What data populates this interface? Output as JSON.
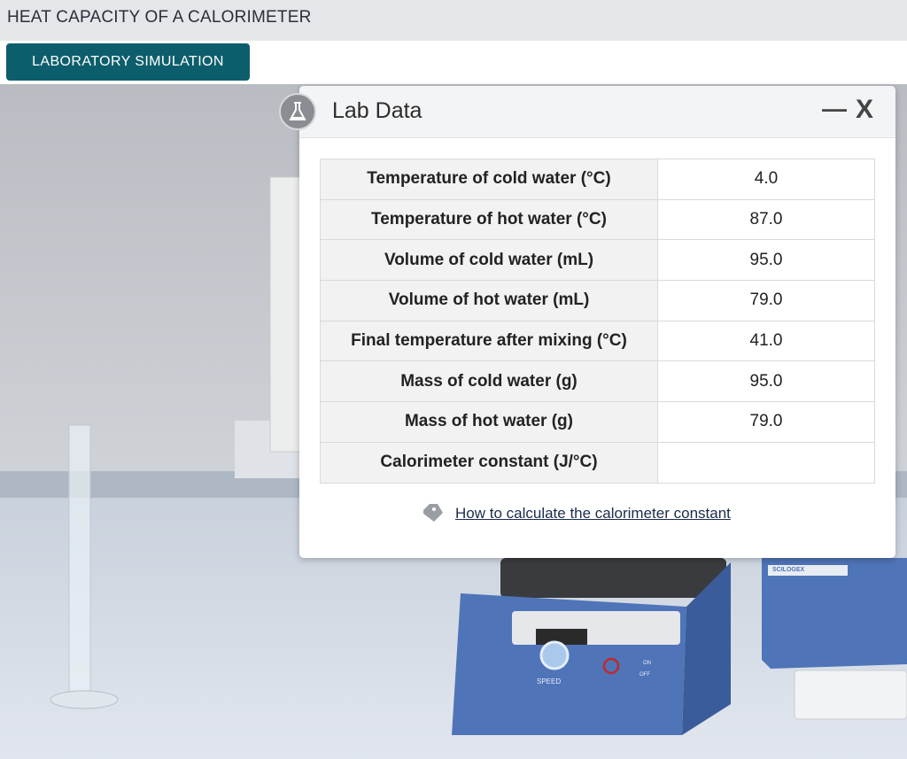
{
  "header": {
    "title": "HEAT CAPACITY OF A CALORIMETER"
  },
  "tab": {
    "label": "LABORATORY SIMULATION"
  },
  "dialog": {
    "title": "Lab Data",
    "minimize": "—",
    "close": "X",
    "table": {
      "rows": [
        [
          "Temperature of cold water (°C)",
          "4.0"
        ],
        [
          "Temperature of hot water (°C)",
          "87.0"
        ],
        [
          "Volume of cold water (mL)",
          "95.0"
        ],
        [
          "Volume of hot water (mL)",
          "79.0"
        ],
        [
          "Final temperature after mixing (°C)",
          "41.0"
        ],
        [
          "Mass of cold water (g)",
          "95.0"
        ],
        [
          "Mass of hot water (g)",
          "79.0"
        ],
        [
          "Calorimeter constant (J/°C)"
        ]
      ]
    },
    "link": "How to calculate the calorimeter constant"
  },
  "scene": {
    "speed": "SPEED",
    "on": "ON",
    "off": "OFF",
    "brand": "SCILOGEX"
  }
}
